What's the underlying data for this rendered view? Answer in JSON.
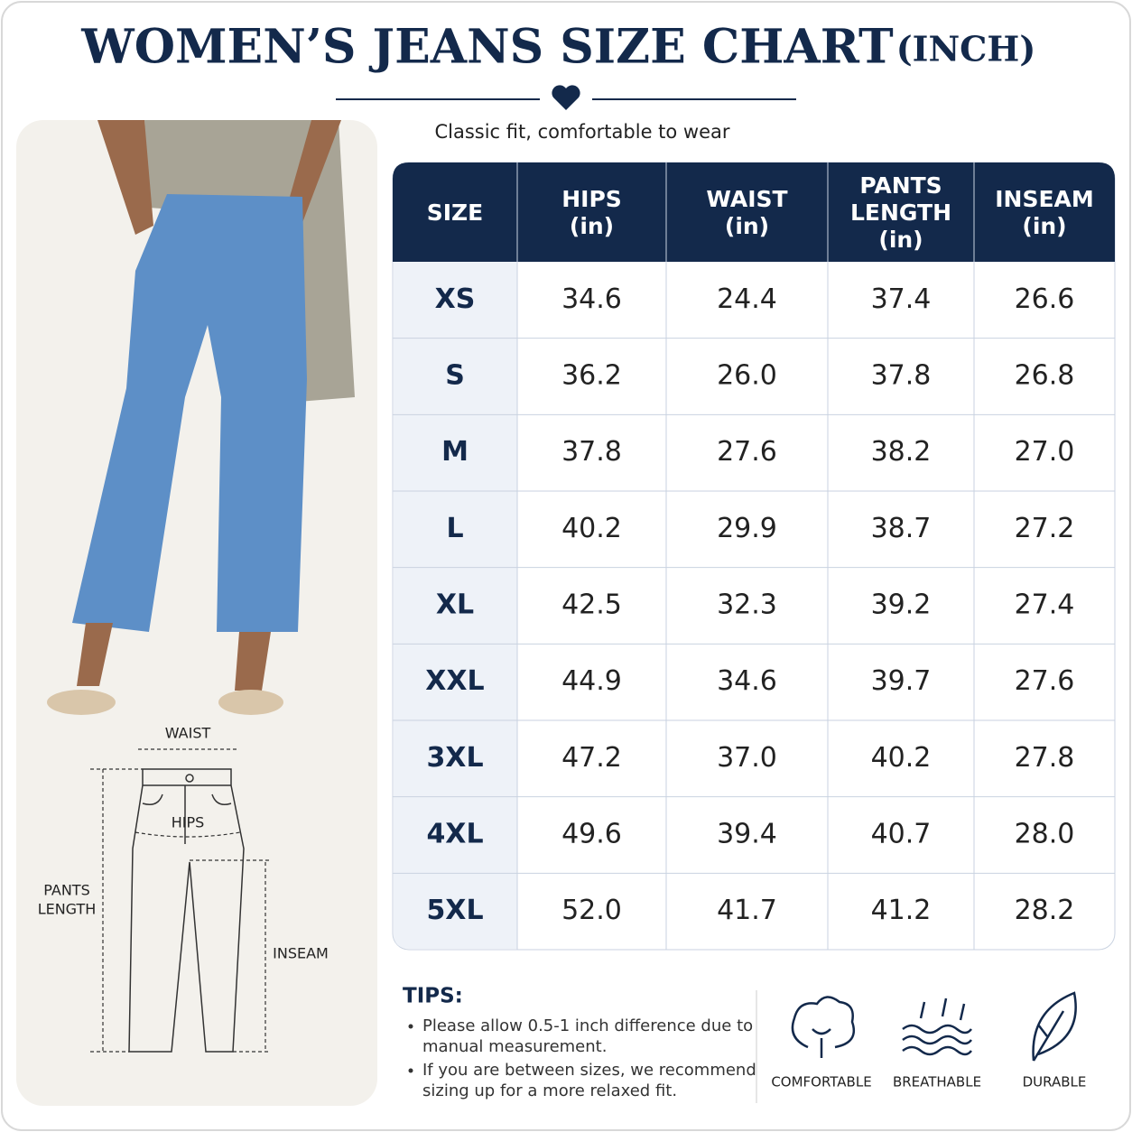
{
  "title": "WOMEN’S JEANS SIZE CHART",
  "title_unit": "(INCH)",
  "subtitle": "Classic fit, comfortable to wear",
  "table": {
    "headers": [
      [
        "SIZE"
      ],
      [
        "HIPS",
        "(in)"
      ],
      [
        "WAIST",
        "(in)"
      ],
      [
        "PANTS",
        "LENGTH",
        "(in)"
      ],
      [
        "INSEAM",
        "(in)"
      ]
    ],
    "rows": [
      [
        "XS",
        "34.6",
        "24.4",
        "37.4",
        "26.6"
      ],
      [
        "S",
        "36.2",
        "26.0",
        "37.8",
        "26.8"
      ],
      [
        "M",
        "37.8",
        "27.6",
        "38.2",
        "27.0"
      ],
      [
        "L",
        "40.2",
        "29.9",
        "38.7",
        "27.2"
      ],
      [
        "XL",
        "42.5",
        "32.3",
        "39.2",
        "27.4"
      ],
      [
        "XXL",
        "44.9",
        "34.6",
        "39.7",
        "27.6"
      ],
      [
        "3XL",
        "47.2",
        "37.0",
        "40.2",
        "27.8"
      ],
      [
        "4XL",
        "49.6",
        "39.4",
        "40.7",
        "28.0"
      ],
      [
        "5XL",
        "52.0",
        "41.7",
        "41.2",
        "28.2"
      ]
    ]
  },
  "diagram": {
    "waist": "WAIST",
    "hips": "HIPS",
    "pants_length": [
      "PANTS",
      "LENGTH"
    ],
    "inseam": "INSEAM"
  },
  "tips": {
    "heading": "TIPS:",
    "items": [
      [
        "Please allow 0.5-1 inch difference due to",
        "manual measurement."
      ],
      [
        "If you are between sizes, we recommend",
        "sizing up for a more relaxed fit."
      ]
    ]
  },
  "features": [
    "COMFORTABLE",
    "BREATHABLE",
    "DURABLE"
  ]
}
